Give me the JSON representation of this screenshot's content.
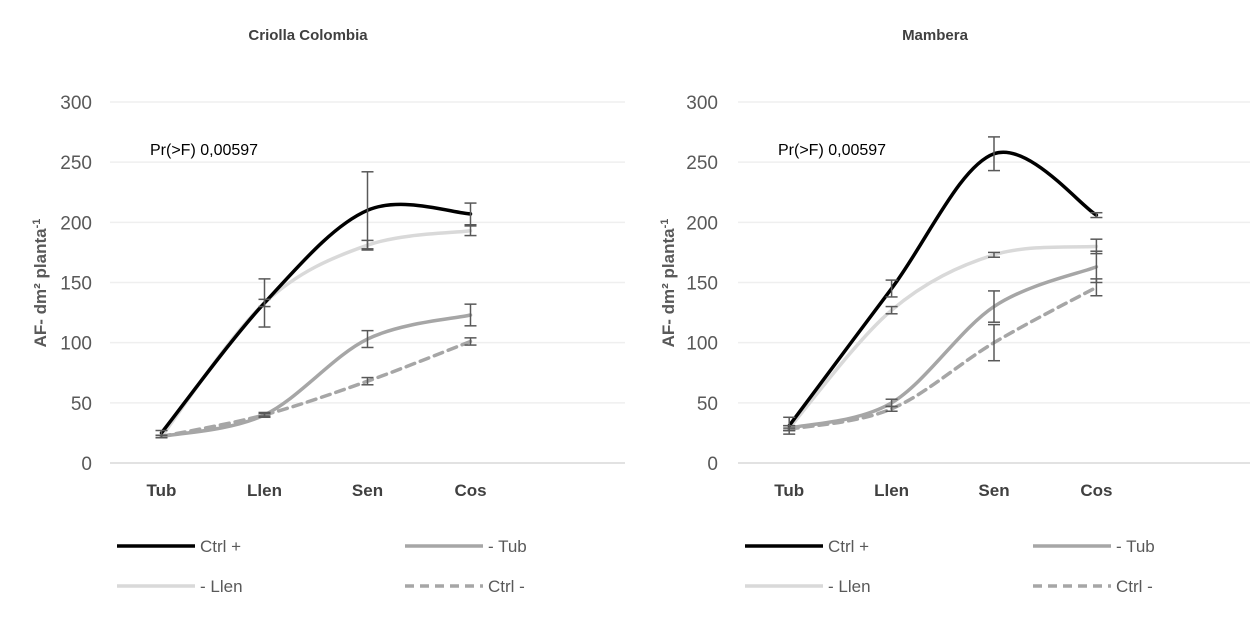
{
  "chart_data": [
    {
      "type": "line",
      "title": "Criolla Colombia",
      "ylabel": "AF- dm² planta",
      "ylabel_sup": "-1",
      "xlabel": "",
      "categories": [
        "Tub",
        "Llen",
        "Sen",
        "Cos"
      ],
      "ylim": [
        0,
        300
      ],
      "yticks": [
        0,
        50,
        100,
        150,
        200,
        250,
        300
      ],
      "grid": true,
      "smooth": true,
      "annotation": "Pr(>F) 0,00597",
      "legend_position": "bottom",
      "series": [
        {
          "name": "Ctrl +",
          "values": [
            25,
            133,
            210,
            207
          ],
          "error": [
            2,
            20,
            32,
            9
          ],
          "color": "#000000",
          "dashed": false
        },
        {
          "name": "- Tub",
          "values": [
            22,
            40,
            103,
            123
          ],
          "error": [
            1,
            2,
            7,
            9
          ],
          "color": "#a6a6a6",
          "dashed": false
        },
        {
          "name": "- Llen",
          "values": [
            22,
            133,
            181,
            193
          ],
          "error": [
            1,
            3,
            4,
            4
          ],
          "color": "#d9d9d9",
          "dashed": false
        },
        {
          "name": "Ctrl -",
          "values": [
            22,
            40,
            68,
            101
          ],
          "error": [
            1,
            1,
            3,
            3
          ],
          "color": "#a6a6a6",
          "dashed": true
        }
      ]
    },
    {
      "type": "line",
      "title": "Mambera",
      "ylabel": "AF- dm² planta",
      "ylabel_sup": "-1",
      "xlabel": "",
      "categories": [
        "Tub",
        "Llen",
        "Sen",
        "Cos"
      ],
      "ylim": [
        0,
        300
      ],
      "yticks": [
        0,
        50,
        100,
        150,
        200,
        250,
        300
      ],
      "grid": true,
      "smooth": true,
      "annotation": "Pr(>F) 0,00597",
      "legend_position": "bottom",
      "series": [
        {
          "name": "Ctrl +",
          "values": [
            31,
            145,
            257,
            206
          ],
          "error": [
            7,
            7,
            14,
            2
          ],
          "color": "#000000",
          "dashed": false
        },
        {
          "name": "- Tub",
          "values": [
            29,
            50,
            130,
            163
          ],
          "error": [
            2,
            3,
            13,
            13
          ],
          "color": "#a6a6a6",
          "dashed": false
        },
        {
          "name": "- Llen",
          "values": [
            29,
            127,
            173,
            180
          ],
          "error": [
            2,
            3,
            2,
            6
          ],
          "color": "#d9d9d9",
          "dashed": false
        },
        {
          "name": "Ctrl -",
          "values": [
            28,
            45,
            100,
            146
          ],
          "error": [
            1,
            2,
            15,
            7
          ],
          "color": "#a6a6a6",
          "dashed": true
        }
      ]
    }
  ]
}
